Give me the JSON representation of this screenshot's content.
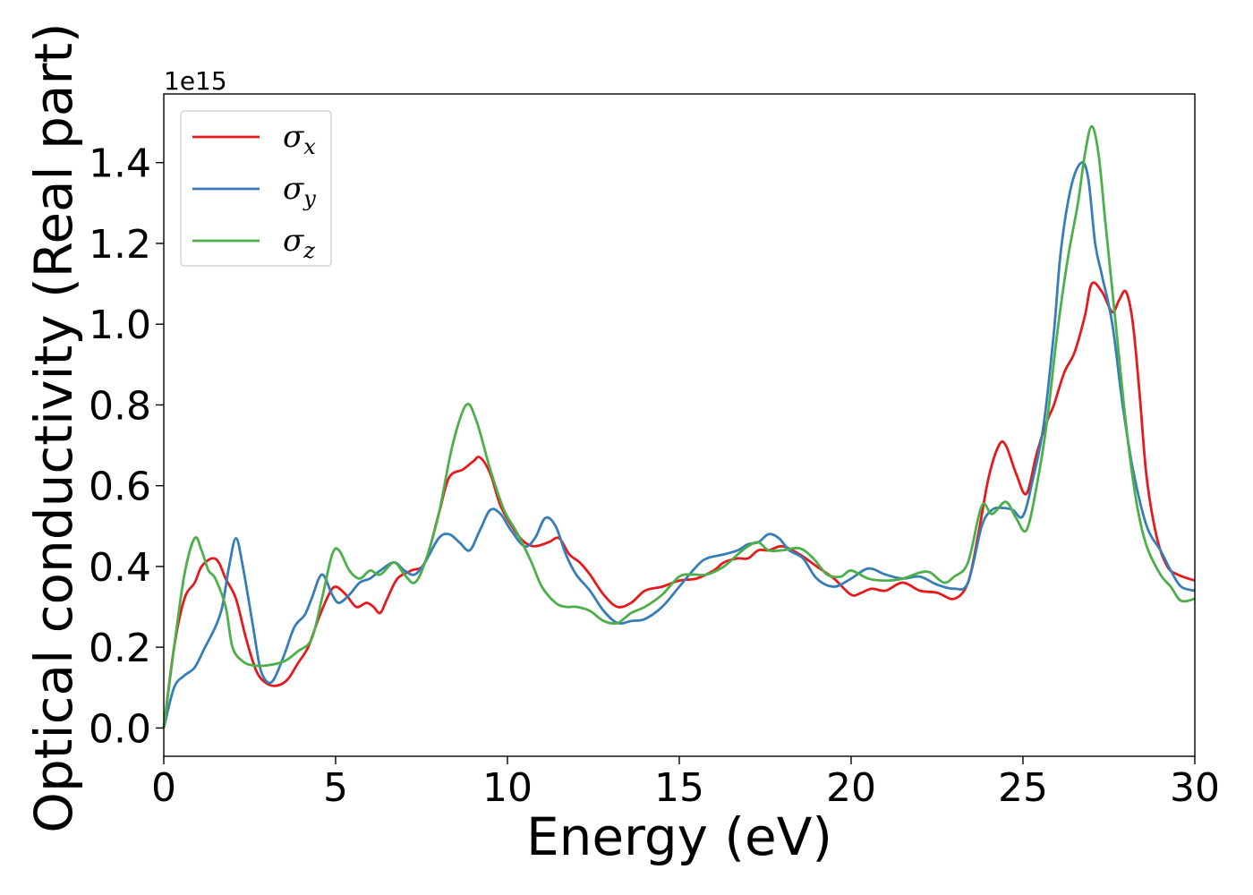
{
  "chart_data": {
    "type": "line",
    "title": "",
    "xlabel": "Energy (eV)",
    "ylabel": "Optical conductivity (Real part)",
    "y_offset_text": "1e15",
    "xlim": [
      0,
      30
    ],
    "ylim": [
      -0.07,
      1.57
    ],
    "x_ticks": [
      0,
      5,
      10,
      15,
      20,
      25,
      30
    ],
    "x_tick_labels": [
      "0",
      "5",
      "10",
      "15",
      "20",
      "25",
      "30"
    ],
    "y_ticks": [
      0.0,
      0.2,
      0.4,
      0.6,
      0.8,
      1.0,
      1.2,
      1.4
    ],
    "y_tick_labels": [
      "0.0",
      "0.2",
      "0.4",
      "0.6",
      "0.8",
      "1.0",
      "1.2",
      "1.4"
    ],
    "grid": false,
    "legend_position": "top-left",
    "series": [
      {
        "name": "σ",
        "subscript": "x",
        "color": "#e41a1c",
        "points": [
          [
            0,
            0
          ],
          [
            0.3,
            0.2
          ],
          [
            0.6,
            0.32
          ],
          [
            0.9,
            0.36
          ],
          [
            1.1,
            0.4
          ],
          [
            1.4,
            0.42
          ],
          [
            1.6,
            0.41
          ],
          [
            1.8,
            0.37
          ],
          [
            2.1,
            0.32
          ],
          [
            2.4,
            0.22
          ],
          [
            2.7,
            0.14
          ],
          [
            3.0,
            0.11
          ],
          [
            3.3,
            0.105
          ],
          [
            3.6,
            0.12
          ],
          [
            3.9,
            0.16
          ],
          [
            4.2,
            0.2
          ],
          [
            4.5,
            0.27
          ],
          [
            4.8,
            0.33
          ],
          [
            5.0,
            0.35
          ],
          [
            5.3,
            0.33
          ],
          [
            5.6,
            0.3
          ],
          [
            5.9,
            0.31
          ],
          [
            6.1,
            0.3
          ],
          [
            6.3,
            0.285
          ],
          [
            6.5,
            0.32
          ],
          [
            6.8,
            0.37
          ],
          [
            7.2,
            0.39
          ],
          [
            7.6,
            0.41
          ],
          [
            8.0,
            0.53
          ],
          [
            8.3,
            0.62
          ],
          [
            8.7,
            0.64
          ],
          [
            9.0,
            0.66
          ],
          [
            9.2,
            0.67
          ],
          [
            9.5,
            0.63
          ],
          [
            9.8,
            0.55
          ],
          [
            10.2,
            0.49
          ],
          [
            10.5,
            0.46
          ],
          [
            10.8,
            0.45
          ],
          [
            11.2,
            0.46
          ],
          [
            11.5,
            0.47
          ],
          [
            11.8,
            0.43
          ],
          [
            12.1,
            0.41
          ],
          [
            12.4,
            0.38
          ],
          [
            12.8,
            0.33
          ],
          [
            13.2,
            0.3
          ],
          [
            13.6,
            0.31
          ],
          [
            14.0,
            0.34
          ],
          [
            14.5,
            0.35
          ],
          [
            15.0,
            0.365
          ],
          [
            15.5,
            0.37
          ],
          [
            16.0,
            0.39
          ],
          [
            16.3,
            0.41
          ],
          [
            16.7,
            0.42
          ],
          [
            17.0,
            0.42
          ],
          [
            17.3,
            0.44
          ],
          [
            17.6,
            0.44
          ],
          [
            18.0,
            0.45
          ],
          [
            18.5,
            0.43
          ],
          [
            19.0,
            0.4
          ],
          [
            19.5,
            0.37
          ],
          [
            20.0,
            0.33
          ],
          [
            20.3,
            0.335
          ],
          [
            20.6,
            0.345
          ],
          [
            21.0,
            0.34
          ],
          [
            21.5,
            0.36
          ],
          [
            22.0,
            0.34
          ],
          [
            22.5,
            0.335
          ],
          [
            23.0,
            0.32
          ],
          [
            23.4,
            0.36
          ],
          [
            23.7,
            0.48
          ],
          [
            24.0,
            0.62
          ],
          [
            24.3,
            0.7
          ],
          [
            24.5,
            0.7
          ],
          [
            24.8,
            0.63
          ],
          [
            25.1,
            0.58
          ],
          [
            25.4,
            0.68
          ],
          [
            25.7,
            0.76
          ],
          [
            25.9,
            0.8
          ],
          [
            26.2,
            0.88
          ],
          [
            26.5,
            0.93
          ],
          [
            26.8,
            1.02
          ],
          [
            27.0,
            1.1
          ],
          [
            27.3,
            1.08
          ],
          [
            27.6,
            1.03
          ],
          [
            27.8,
            1.06
          ],
          [
            28.0,
            1.08
          ],
          [
            28.2,
            1.0
          ],
          [
            28.4,
            0.82
          ],
          [
            28.6,
            0.62
          ],
          [
            28.9,
            0.47
          ],
          [
            29.2,
            0.4
          ],
          [
            29.5,
            0.38
          ],
          [
            30.0,
            0.365
          ]
        ]
      },
      {
        "name": "σ",
        "subscript": "y",
        "color": "#377eb8",
        "points": [
          [
            0,
            0
          ],
          [
            0.3,
            0.1
          ],
          [
            0.6,
            0.13
          ],
          [
            0.9,
            0.15
          ],
          [
            1.2,
            0.2
          ],
          [
            1.5,
            0.25
          ],
          [
            1.7,
            0.3
          ],
          [
            1.9,
            0.4
          ],
          [
            2.1,
            0.47
          ],
          [
            2.3,
            0.4
          ],
          [
            2.6,
            0.25
          ],
          [
            2.8,
            0.15
          ],
          [
            3.0,
            0.115
          ],
          [
            3.2,
            0.12
          ],
          [
            3.5,
            0.18
          ],
          [
            3.8,
            0.25
          ],
          [
            4.1,
            0.28
          ],
          [
            4.3,
            0.32
          ],
          [
            4.6,
            0.38
          ],
          [
            4.9,
            0.33
          ],
          [
            5.1,
            0.31
          ],
          [
            5.4,
            0.33
          ],
          [
            5.7,
            0.36
          ],
          [
            6.0,
            0.37
          ],
          [
            6.3,
            0.39
          ],
          [
            6.7,
            0.41
          ],
          [
            7.0,
            0.39
          ],
          [
            7.3,
            0.38
          ],
          [
            7.6,
            0.41
          ],
          [
            8.0,
            0.47
          ],
          [
            8.3,
            0.48
          ],
          [
            8.6,
            0.46
          ],
          [
            8.9,
            0.44
          ],
          [
            9.2,
            0.49
          ],
          [
            9.5,
            0.54
          ],
          [
            9.8,
            0.53
          ],
          [
            10.1,
            0.49
          ],
          [
            10.5,
            0.45
          ],
          [
            10.8,
            0.47
          ],
          [
            11.1,
            0.52
          ],
          [
            11.4,
            0.5
          ],
          [
            11.7,
            0.43
          ],
          [
            12.0,
            0.38
          ],
          [
            12.4,
            0.34
          ],
          [
            12.8,
            0.29
          ],
          [
            13.2,
            0.26
          ],
          [
            13.6,
            0.265
          ],
          [
            14.0,
            0.27
          ],
          [
            14.5,
            0.3
          ],
          [
            15.0,
            0.35
          ],
          [
            15.5,
            0.4
          ],
          [
            15.8,
            0.42
          ],
          [
            16.3,
            0.43
          ],
          [
            16.7,
            0.44
          ],
          [
            17.0,
            0.455
          ],
          [
            17.3,
            0.46
          ],
          [
            17.6,
            0.48
          ],
          [
            17.9,
            0.47
          ],
          [
            18.2,
            0.44
          ],
          [
            18.6,
            0.42
          ],
          [
            19.0,
            0.37
          ],
          [
            19.5,
            0.35
          ],
          [
            20.0,
            0.37
          ],
          [
            20.5,
            0.395
          ],
          [
            21.0,
            0.38
          ],
          [
            21.5,
            0.37
          ],
          [
            22.0,
            0.375
          ],
          [
            22.5,
            0.355
          ],
          [
            23.0,
            0.345
          ],
          [
            23.4,
            0.36
          ],
          [
            23.8,
            0.5
          ],
          [
            24.1,
            0.54
          ],
          [
            24.4,
            0.545
          ],
          [
            24.7,
            0.54
          ],
          [
            25.0,
            0.525
          ],
          [
            25.3,
            0.62
          ],
          [
            25.6,
            0.75
          ],
          [
            25.9,
            0.98
          ],
          [
            26.1,
            1.18
          ],
          [
            26.4,
            1.34
          ],
          [
            26.7,
            1.4
          ],
          [
            26.9,
            1.36
          ],
          [
            27.1,
            1.2
          ],
          [
            27.3,
            1.12
          ],
          [
            27.6,
            1.0
          ],
          [
            27.9,
            0.8
          ],
          [
            28.2,
            0.64
          ],
          [
            28.6,
            0.5
          ],
          [
            29.0,
            0.44
          ],
          [
            29.3,
            0.39
          ],
          [
            29.6,
            0.35
          ],
          [
            30.0,
            0.34
          ]
        ]
      },
      {
        "name": "σ",
        "subscript": "z",
        "color": "#4daf4a",
        "points": [
          [
            0,
            0
          ],
          [
            0.3,
            0.2
          ],
          [
            0.6,
            0.38
          ],
          [
            0.9,
            0.47
          ],
          [
            1.1,
            0.44
          ],
          [
            1.3,
            0.39
          ],
          [
            1.5,
            0.37
          ],
          [
            1.8,
            0.3
          ],
          [
            2.0,
            0.2
          ],
          [
            2.3,
            0.165
          ],
          [
            2.6,
            0.155
          ],
          [
            3.0,
            0.155
          ],
          [
            3.5,
            0.165
          ],
          [
            3.9,
            0.19
          ],
          [
            4.3,
            0.22
          ],
          [
            4.6,
            0.32
          ],
          [
            4.9,
            0.43
          ],
          [
            5.1,
            0.44
          ],
          [
            5.4,
            0.39
          ],
          [
            5.7,
            0.37
          ],
          [
            6.0,
            0.39
          ],
          [
            6.3,
            0.38
          ],
          [
            6.7,
            0.41
          ],
          [
            7.0,
            0.38
          ],
          [
            7.3,
            0.36
          ],
          [
            7.6,
            0.41
          ],
          [
            8.0,
            0.53
          ],
          [
            8.4,
            0.7
          ],
          [
            8.8,
            0.8
          ],
          [
            9.1,
            0.76
          ],
          [
            9.5,
            0.64
          ],
          [
            9.9,
            0.54
          ],
          [
            10.3,
            0.48
          ],
          [
            10.7,
            0.41
          ],
          [
            11.0,
            0.35
          ],
          [
            11.4,
            0.31
          ],
          [
            11.7,
            0.3
          ],
          [
            12.0,
            0.3
          ],
          [
            12.4,
            0.29
          ],
          [
            12.8,
            0.265
          ],
          [
            13.2,
            0.26
          ],
          [
            13.6,
            0.285
          ],
          [
            14.0,
            0.3
          ],
          [
            14.5,
            0.33
          ],
          [
            15.0,
            0.375
          ],
          [
            15.4,
            0.38
          ],
          [
            15.8,
            0.38
          ],
          [
            16.3,
            0.4
          ],
          [
            16.7,
            0.43
          ],
          [
            17.0,
            0.45
          ],
          [
            17.3,
            0.46
          ],
          [
            17.6,
            0.44
          ],
          [
            18.0,
            0.44
          ],
          [
            18.5,
            0.445
          ],
          [
            18.9,
            0.42
          ],
          [
            19.3,
            0.38
          ],
          [
            19.7,
            0.375
          ],
          [
            20.0,
            0.39
          ],
          [
            20.5,
            0.37
          ],
          [
            21.0,
            0.365
          ],
          [
            21.5,
            0.37
          ],
          [
            22.0,
            0.385
          ],
          [
            22.3,
            0.385
          ],
          [
            22.7,
            0.36
          ],
          [
            23.0,
            0.375
          ],
          [
            23.4,
            0.41
          ],
          [
            23.8,
            0.55
          ],
          [
            24.1,
            0.53
          ],
          [
            24.5,
            0.56
          ],
          [
            24.8,
            0.52
          ],
          [
            25.1,
            0.49
          ],
          [
            25.4,
            0.6
          ],
          [
            25.7,
            0.76
          ],
          [
            26.0,
            0.98
          ],
          [
            26.3,
            1.16
          ],
          [
            26.6,
            1.3
          ],
          [
            26.8,
            1.42
          ],
          [
            27.0,
            1.49
          ],
          [
            27.2,
            1.42
          ],
          [
            27.4,
            1.25
          ],
          [
            27.7,
            1.0
          ],
          [
            28.0,
            0.75
          ],
          [
            28.3,
            0.56
          ],
          [
            28.6,
            0.45
          ],
          [
            29.0,
            0.38
          ],
          [
            29.3,
            0.35
          ],
          [
            29.6,
            0.315
          ],
          [
            30.0,
            0.32
          ]
        ]
      }
    ]
  }
}
